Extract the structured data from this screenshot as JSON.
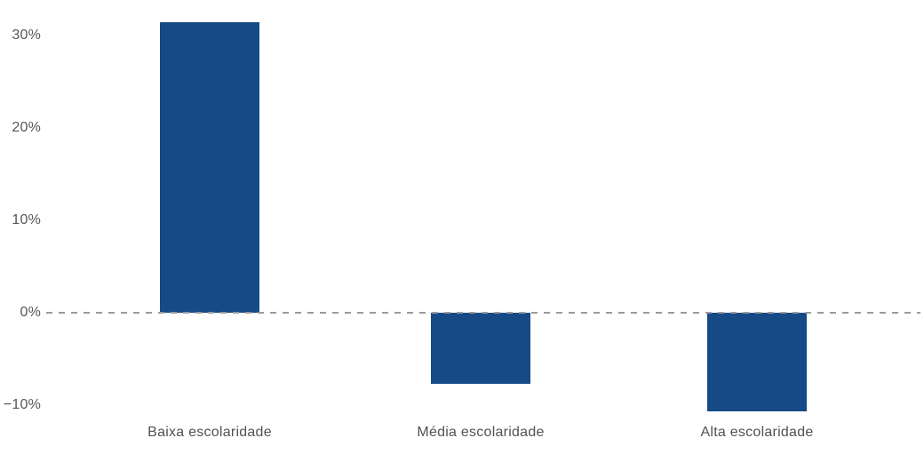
{
  "chart_data": {
    "type": "bar",
    "title": "",
    "xlabel": "",
    "ylabel": "",
    "categories": [
      "Baixa escolaridade",
      "Média escolaridade",
      "Alta escolaridade"
    ],
    "values": [
      31.4,
      -7.7,
      -10.7
    ],
    "yticks": [
      30,
      20,
      10,
      0,
      -10
    ],
    "ytick_labels": [
      "30%",
      "20%",
      "10%",
      "0%",
      "−10%"
    ],
    "ylim": [
      -13,
      33
    ],
    "grid": false,
    "legend": null,
    "zero_line_style": "dashed",
    "colors": {
      "bar": "#164a87",
      "zero_line": "#9a9a9a",
      "tick_text": "#565658",
      "category_text": "#525254",
      "background": "#ffffff"
    }
  }
}
